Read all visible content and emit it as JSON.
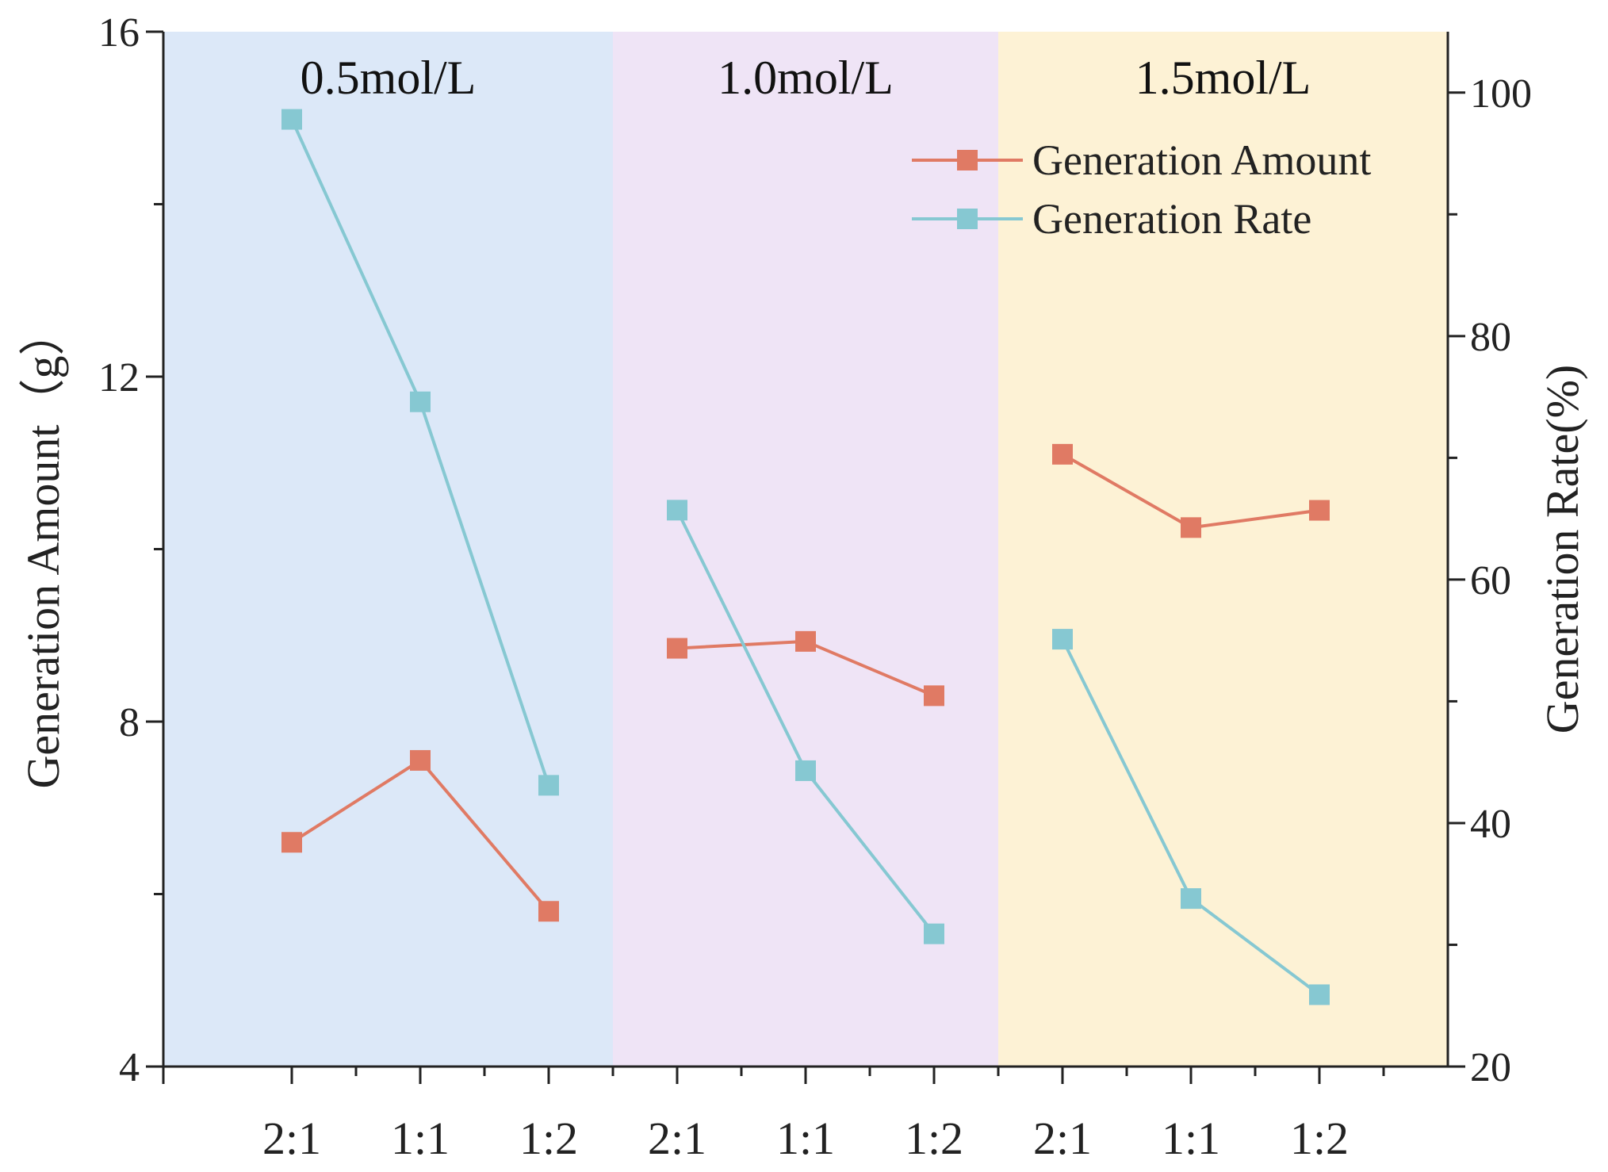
{
  "chart_data": {
    "type": "line",
    "title": "",
    "regions": [
      {
        "label": "0.5mol/L",
        "color": "#dce8f8",
        "span": [
          0,
          3
        ]
      },
      {
        "label": "1.0mol/L",
        "color": "#efe4f6",
        "span": [
          3,
          6
        ]
      },
      {
        "label": "1.5mol/L",
        "color": "#fdf2d5",
        "span": [
          6,
          9
        ]
      }
    ],
    "categories": [
      "2:1",
      "1:1",
      "1:2",
      "2:1",
      "1:1",
      "1:2",
      "2:1",
      "1:1",
      "1:2"
    ],
    "xlabel": "",
    "left_axis": {
      "label": "Generation Amount（g）",
      "ylim": [
        4,
        16
      ],
      "major_ticks": [
        4,
        8,
        12,
        16
      ],
      "minor_ticks": [
        6,
        10,
        14
      ]
    },
    "right_axis": {
      "label": "Generation Rate(%)",
      "ylim": [
        20,
        105
      ],
      "major_ticks": [
        20,
        40,
        60,
        80,
        100
      ],
      "minor_ticks": [
        30,
        50,
        70,
        90
      ]
    },
    "series": [
      {
        "name": "Generation Amount",
        "axis": "left",
        "color": "#e07a64",
        "groups": [
          [
            6.6,
            7.55,
            5.8
          ],
          [
            8.85,
            8.93,
            8.3
          ],
          [
            11.1,
            10.25,
            10.45
          ]
        ]
      },
      {
        "name": "Generation Rate",
        "axis": "right",
        "color": "#86c8d2",
        "groups": [
          [
            97.8,
            74.6,
            43.1
          ],
          [
            65.7,
            44.3,
            30.9
          ],
          [
            55.1,
            33.8,
            25.9
          ]
        ]
      }
    ],
    "legend": {
      "position": "top-right",
      "entries": [
        "Generation Amount",
        "Generation Rate"
      ]
    }
  }
}
